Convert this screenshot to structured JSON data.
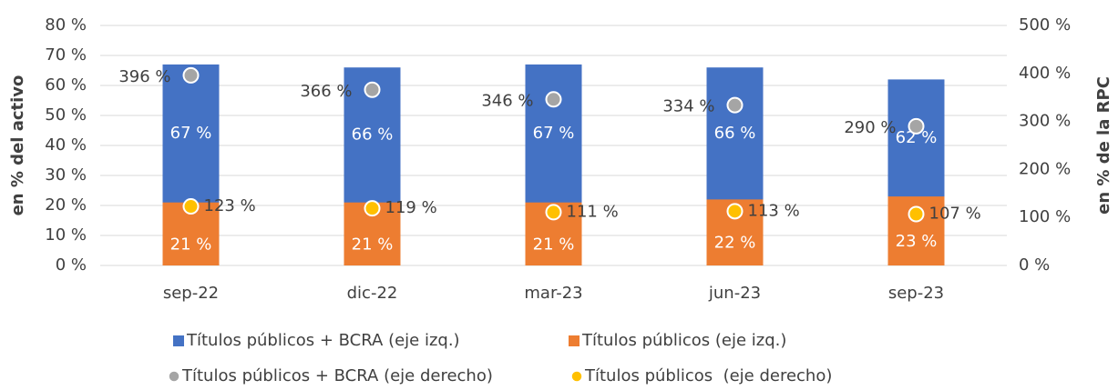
{
  "chart_data": {
    "type": "bar",
    "y_label": "en % del activo",
    "y2_label": "en % de la RPC",
    "categories": [
      "sep-22",
      "dic-22",
      "mar-23",
      "jun-23",
      "sep-23"
    ],
    "series": [
      {
        "name": "Títulos públicos + BCRA (eje izq.)",
        "type": "bar",
        "color": "#4472c4",
        "values": [
          67,
          66,
          67,
          66,
          62
        ],
        "value_labels": [
          "67 %",
          "66 %",
          "67 %",
          "66 %",
          "62 %"
        ]
      },
      {
        "name": "Títulos públicos (eje izq.)",
        "type": "bar",
        "color": "#ed7d31",
        "values": [
          21,
          21,
          21,
          22,
          23
        ],
        "value_labels": [
          "21 %",
          "21 %",
          "21 %",
          "22 %",
          "23 %"
        ]
      },
      {
        "name": "Títulos públicos + BCRA (eje derecho)",
        "type": "scatter",
        "axis": "y2",
        "color": "#a5a5a5",
        "values": [
          396,
          366,
          346,
          334,
          290
        ],
        "value_labels": [
          "396 %",
          "366 %",
          "346 %",
          "334 %",
          "290 %"
        ]
      },
      {
        "name": "Títulos públicos  (eje derecho)",
        "type": "scatter",
        "axis": "y2",
        "color": "#ffc000",
        "values": [
          123,
          119,
          111,
          113,
          107
        ],
        "value_labels": [
          "123 %",
          "119 %",
          "111 %",
          "113 %",
          "107 %"
        ]
      }
    ],
    "ylim": [
      0,
      80
    ],
    "yticks": [
      {
        "value": 0,
        "label": "0 %"
      },
      {
        "value": 10,
        "label": "10 %"
      },
      {
        "value": 20,
        "label": "20 %"
      },
      {
        "value": 30,
        "label": "30 %"
      },
      {
        "value": 40,
        "label": "40 %"
      },
      {
        "value": 50,
        "label": "50 %"
      },
      {
        "value": 60,
        "label": "60 %"
      },
      {
        "value": 70,
        "label": "70 %"
      },
      {
        "value": 80,
        "label": "80 %"
      }
    ],
    "y2lim": [
      0,
      500
    ],
    "y2ticks": [
      {
        "value": 0,
        "label": "0 %"
      },
      {
        "value": 100,
        "label": "100 %"
      },
      {
        "value": 200,
        "label": "200 %"
      },
      {
        "value": 300,
        "label": "300 %"
      },
      {
        "value": 400,
        "label": "400 %"
      },
      {
        "value": 500,
        "label": "500 %"
      }
    ],
    "grid": true
  }
}
